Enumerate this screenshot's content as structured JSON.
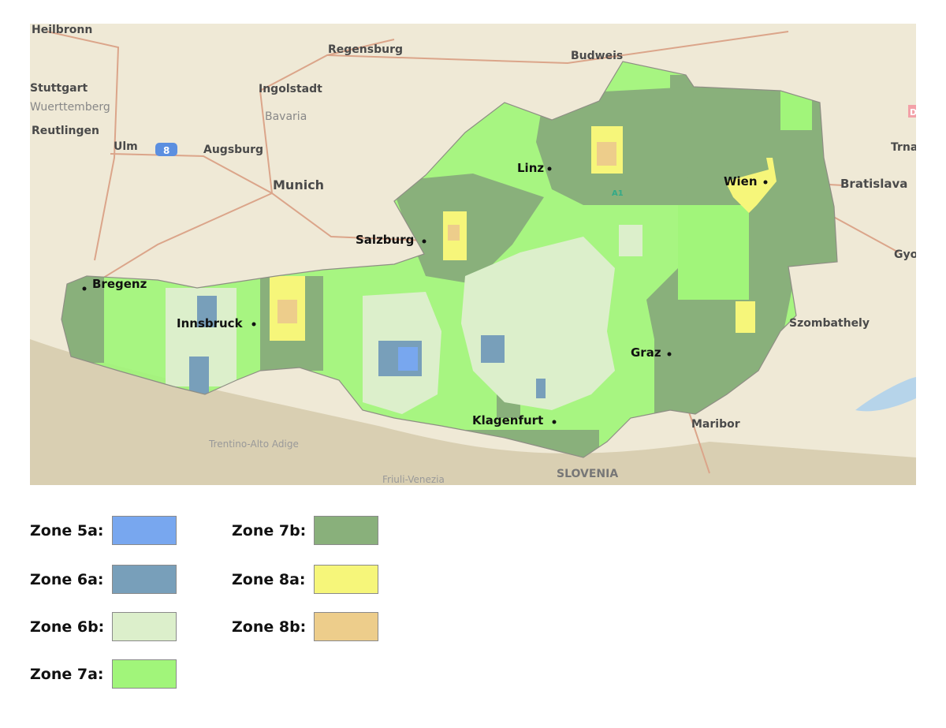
{
  "map": {
    "base_labels": [
      "Heilbronn",
      "Regensburg",
      "Budweis",
      "Stuttgart",
      "Ingolstadt",
      "Wuerttemberg",
      "Bavaria",
      "Reutlingen",
      "Ulm",
      "Augsburg",
      "Munich",
      "Bratislava",
      "Trna",
      "Gyo",
      "Szombathely",
      "Maribor",
      "SLOVENIA",
      "Trentino-Alto Adige",
      "Friuli-Venezia",
      "8",
      "A1",
      "D"
    ],
    "cities": [
      "Linz",
      "Wien",
      "Salzburg",
      "Bregenz",
      "Innsbruck",
      "Graz",
      "Klagenfurt"
    ]
  },
  "legend": [
    {
      "label": "Zone 5a:",
      "color": "#78a7ef"
    },
    {
      "label": "Zone 6a:",
      "color": "#789fba"
    },
    {
      "label": "Zone 6b:",
      "color": "#dcefcb"
    },
    {
      "label": "Zone 7a:",
      "color": "#a1f57a"
    },
    {
      "label": "Zone 7b:",
      "color": "#89b07b"
    },
    {
      "label": "Zone 8a:",
      "color": "#f6f67a"
    },
    {
      "label": "Zone 8b:",
      "color": "#edcd8b"
    }
  ]
}
